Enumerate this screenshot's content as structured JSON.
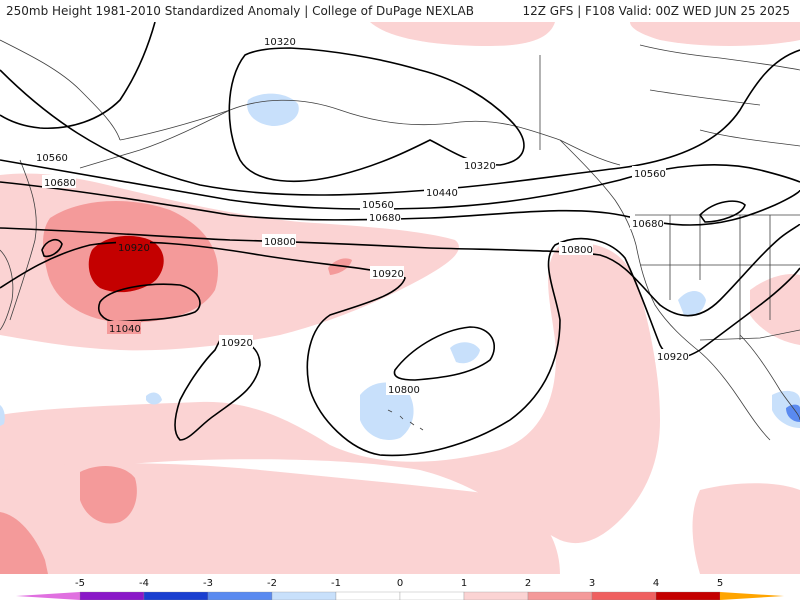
{
  "header": {
    "left_title": "250mb Height 1981-2010 Standardized Anomaly | College of DuPage NEXLAB",
    "right_title": "12Z GFS | F108 Valid: 00Z WED JUN 25 2025"
  },
  "contour_labels": {
    "c10320_a": "10320",
    "c10320_b": "10320",
    "c10440": "10440",
    "c10560_a": "10560",
    "c10560_b": "10560",
    "c10560_c": "10560",
    "c10680_a": "10680",
    "c10680_b": "10680",
    "c10680_c": "10680",
    "c10800_a": "10800",
    "c10800_b": "10800",
    "c10800_c": "10800",
    "c10920_a": "10920",
    "c10920_b": "10920",
    "c10920_c": "10920",
    "c10920_d": "10920",
    "c11040": "11040"
  },
  "colorbar": {
    "ticks": [
      "-5",
      "-4",
      "-3",
      "-2",
      "-1",
      "0",
      "1",
      "2",
      "3",
      "4",
      "5"
    ],
    "colors": {
      "neg5": "#e070e0",
      "neg4": "#8a18c8",
      "neg3": "#1a3fd0",
      "neg2": "#5a8af0",
      "neg1": "#c8e0fb",
      "zero": "#ffffff",
      "pos1": "#fbd3d3",
      "pos2": "#f49a9a",
      "pos3": "#ef6060",
      "pos4": "#c40000",
      "pos5": "#ffa500"
    }
  }
}
